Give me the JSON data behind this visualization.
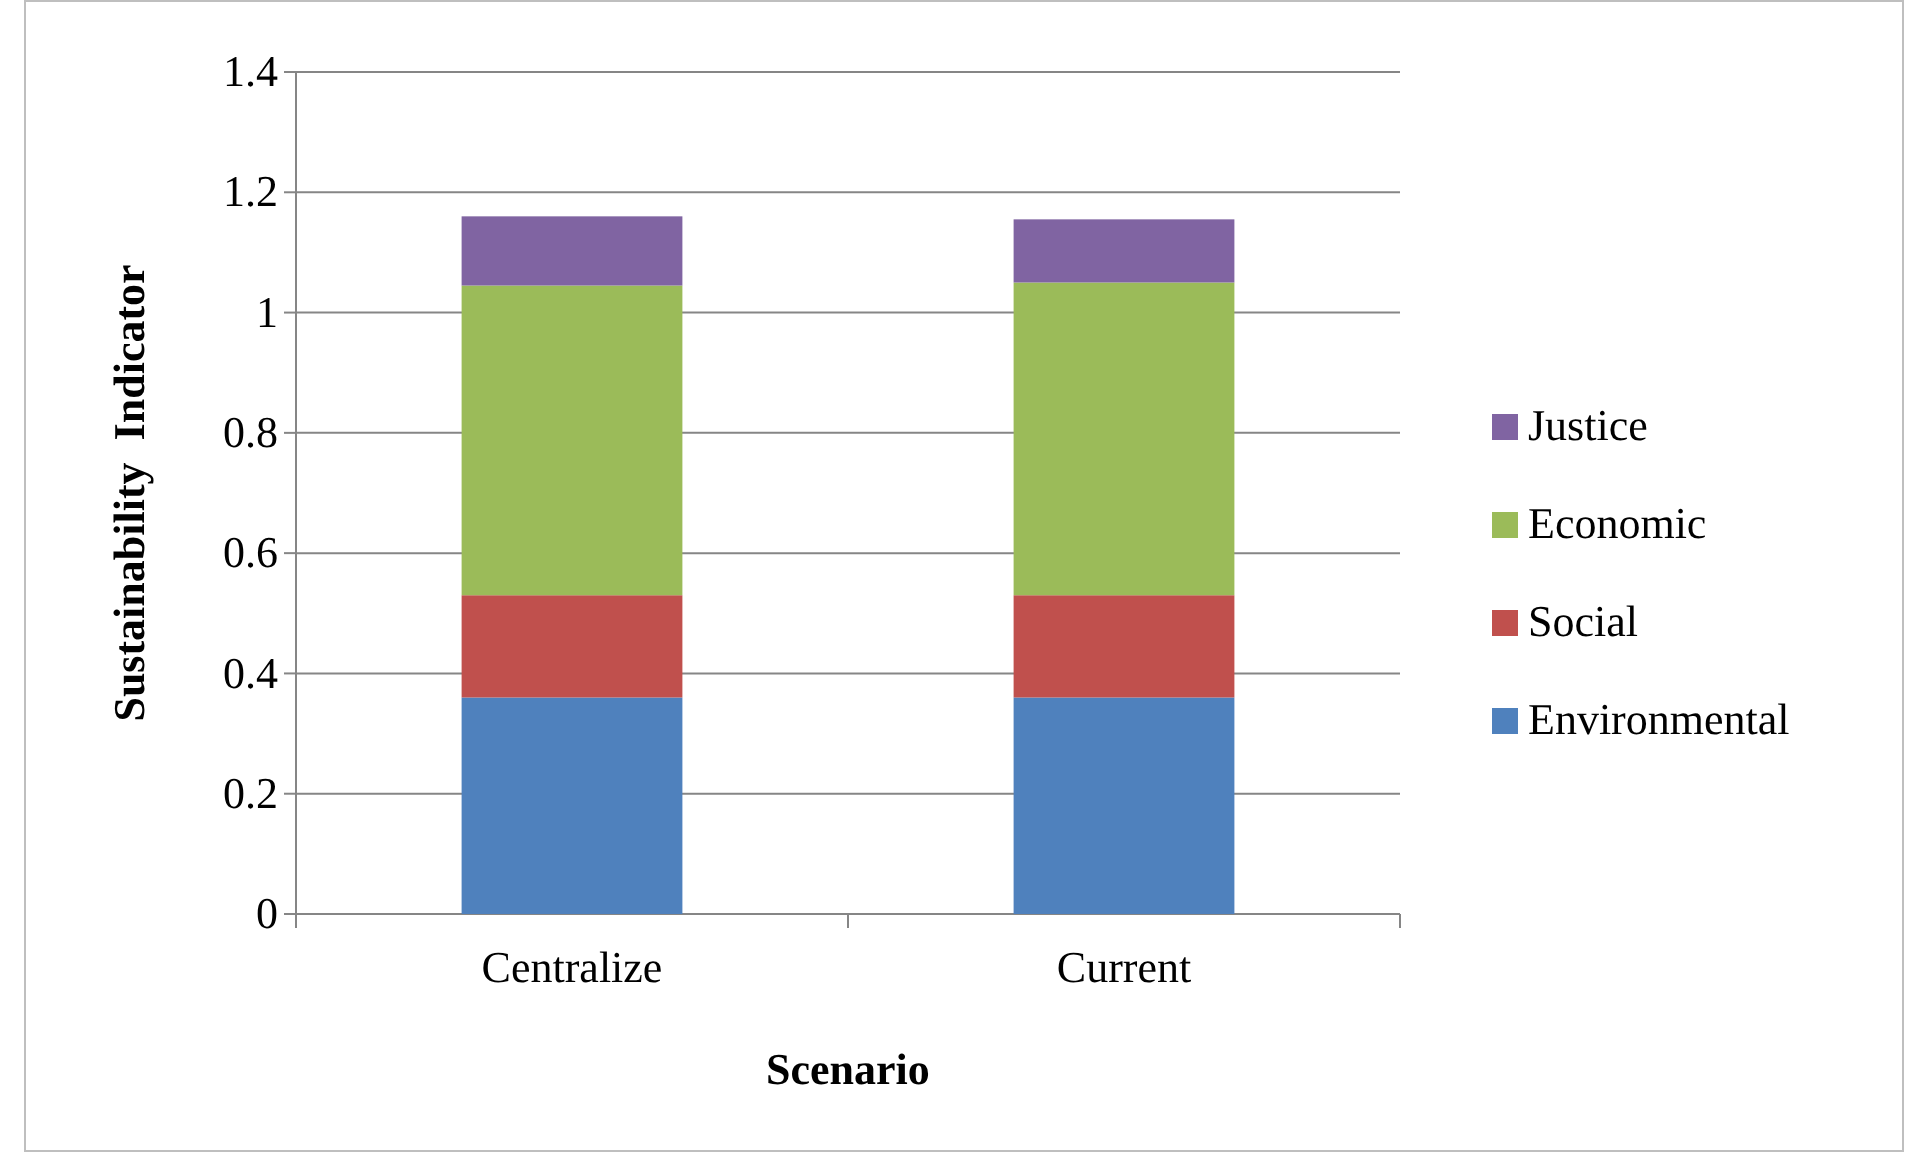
{
  "chart_data": {
    "type": "bar",
    "stacked": true,
    "xlabel": "Scenario",
    "ylabel": "Sustainability  Indicator",
    "categories": [
      "Centralize",
      "Current"
    ],
    "series": [
      {
        "name": "Environmental",
        "color": "#4f81bd",
        "values": [
          0.36,
          0.36
        ]
      },
      {
        "name": "Social",
        "color": "#c0504d",
        "values": [
          0.17,
          0.17
        ]
      },
      {
        "name": "Economic",
        "color": "#9bbb59",
        "values": [
          0.515,
          0.52
        ]
      },
      {
        "name": "Justice",
        "color": "#8064a2",
        "values": [
          0.115,
          0.105
        ]
      }
    ],
    "ylim": [
      0,
      1.4
    ],
    "yticks": [
      0,
      0.2,
      0.4,
      0.6,
      0.8,
      1,
      1.2,
      1.4
    ],
    "grid": "y",
    "legend": "right"
  }
}
